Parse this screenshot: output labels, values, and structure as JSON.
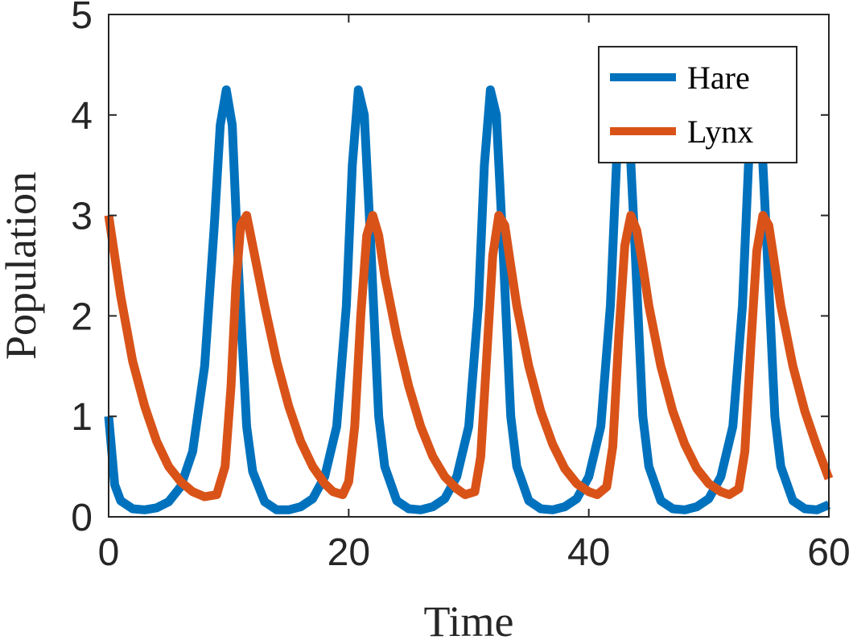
{
  "chart_data": {
    "type": "line",
    "title": "",
    "xlabel": "Time",
    "ylabel": "Population",
    "xlim": [
      0,
      60
    ],
    "ylim": [
      0,
      5
    ],
    "xticks": [
      0,
      20,
      40,
      60
    ],
    "yticks": [
      0,
      1,
      2,
      3,
      4,
      5
    ],
    "grid": false,
    "legend_position": "top-right",
    "series": [
      {
        "name": "Hare",
        "color": "#0072bd",
        "x": [
          0,
          0.5,
          1,
          2,
          3,
          4,
          5,
          6,
          7,
          8,
          8.8,
          9.3,
          9.8,
          10.3,
          10.8,
          11.5,
          12,
          13,
          14,
          15,
          16,
          17,
          18,
          19,
          19.8,
          20.3,
          20.8,
          21.3,
          21.8,
          22.5,
          23,
          24,
          25,
          26,
          27,
          28,
          29,
          30,
          30.8,
          31.3,
          31.8,
          32.3,
          32.8,
          33.5,
          34,
          35,
          36,
          37,
          38,
          39,
          40,
          41,
          41.8,
          42.3,
          42.8,
          43.3,
          43.8,
          44.5,
          45,
          46,
          47,
          48,
          49,
          50,
          51,
          52,
          52.8,
          53.3,
          53.8,
          54.3,
          54.8,
          55.5,
          56,
          57,
          58,
          59,
          60
        ],
        "values": [
          1.0,
          0.32,
          0.16,
          0.08,
          0.07,
          0.09,
          0.15,
          0.3,
          0.65,
          1.5,
          2.9,
          3.9,
          4.25,
          3.9,
          2.5,
          0.9,
          0.45,
          0.15,
          0.07,
          0.07,
          0.1,
          0.18,
          0.4,
          0.9,
          2.1,
          3.5,
          4.25,
          4.0,
          2.8,
          1.0,
          0.5,
          0.16,
          0.08,
          0.07,
          0.1,
          0.18,
          0.4,
          0.9,
          2.1,
          3.5,
          4.25,
          4.0,
          2.8,
          1.0,
          0.5,
          0.16,
          0.08,
          0.07,
          0.1,
          0.18,
          0.4,
          0.9,
          2.1,
          3.5,
          4.25,
          4.0,
          2.8,
          1.0,
          0.5,
          0.16,
          0.08,
          0.07,
          0.1,
          0.18,
          0.4,
          0.9,
          2.1,
          3.5,
          4.25,
          4.0,
          2.8,
          1.0,
          0.5,
          0.16,
          0.08,
          0.07,
          0.12
        ]
      },
      {
        "name": "Lynx",
        "color": "#d95319",
        "x": [
          0,
          1,
          2,
          3,
          4,
          5,
          6,
          7,
          8,
          9,
          9.7,
          10.2,
          10.6,
          11,
          11.5,
          12,
          13,
          14,
          15,
          16,
          17,
          18,
          18.7,
          19.5,
          20,
          20.5,
          21,
          21.5,
          22,
          22.5,
          23,
          24,
          25,
          26,
          27,
          28,
          29,
          29.7,
          30.5,
          31,
          31.5,
          32,
          32.5,
          33,
          33.5,
          34,
          35,
          36,
          37,
          38,
          39,
          40,
          40.7,
          41.5,
          42,
          42.5,
          43,
          43.5,
          44,
          44.5,
          45,
          46,
          47,
          48,
          49,
          50,
          51,
          51.7,
          52.5,
          53,
          53.5,
          54,
          54.5,
          55,
          55.5,
          56,
          57,
          58,
          59,
          60
        ],
        "values": [
          3.0,
          2.2,
          1.55,
          1.1,
          0.75,
          0.5,
          0.35,
          0.25,
          0.2,
          0.22,
          0.5,
          1.3,
          2.3,
          2.9,
          3.0,
          2.7,
          2.1,
          1.55,
          1.1,
          0.75,
          0.5,
          0.33,
          0.25,
          0.22,
          0.35,
          0.9,
          2.0,
          2.8,
          3.0,
          2.8,
          2.4,
          1.8,
          1.3,
          0.9,
          0.6,
          0.4,
          0.28,
          0.22,
          0.25,
          0.6,
          1.6,
          2.6,
          3.0,
          2.9,
          2.5,
          2.1,
          1.5,
          1.05,
          0.72,
          0.48,
          0.33,
          0.25,
          0.22,
          0.3,
          0.7,
          1.8,
          2.7,
          3.0,
          2.85,
          2.5,
          2.1,
          1.5,
          1.05,
          0.72,
          0.48,
          0.33,
          0.25,
          0.22,
          0.28,
          0.65,
          1.7,
          2.65,
          3.0,
          2.9,
          2.5,
          2.1,
          1.5,
          1.05,
          0.7,
          0.38
        ]
      }
    ]
  }
}
